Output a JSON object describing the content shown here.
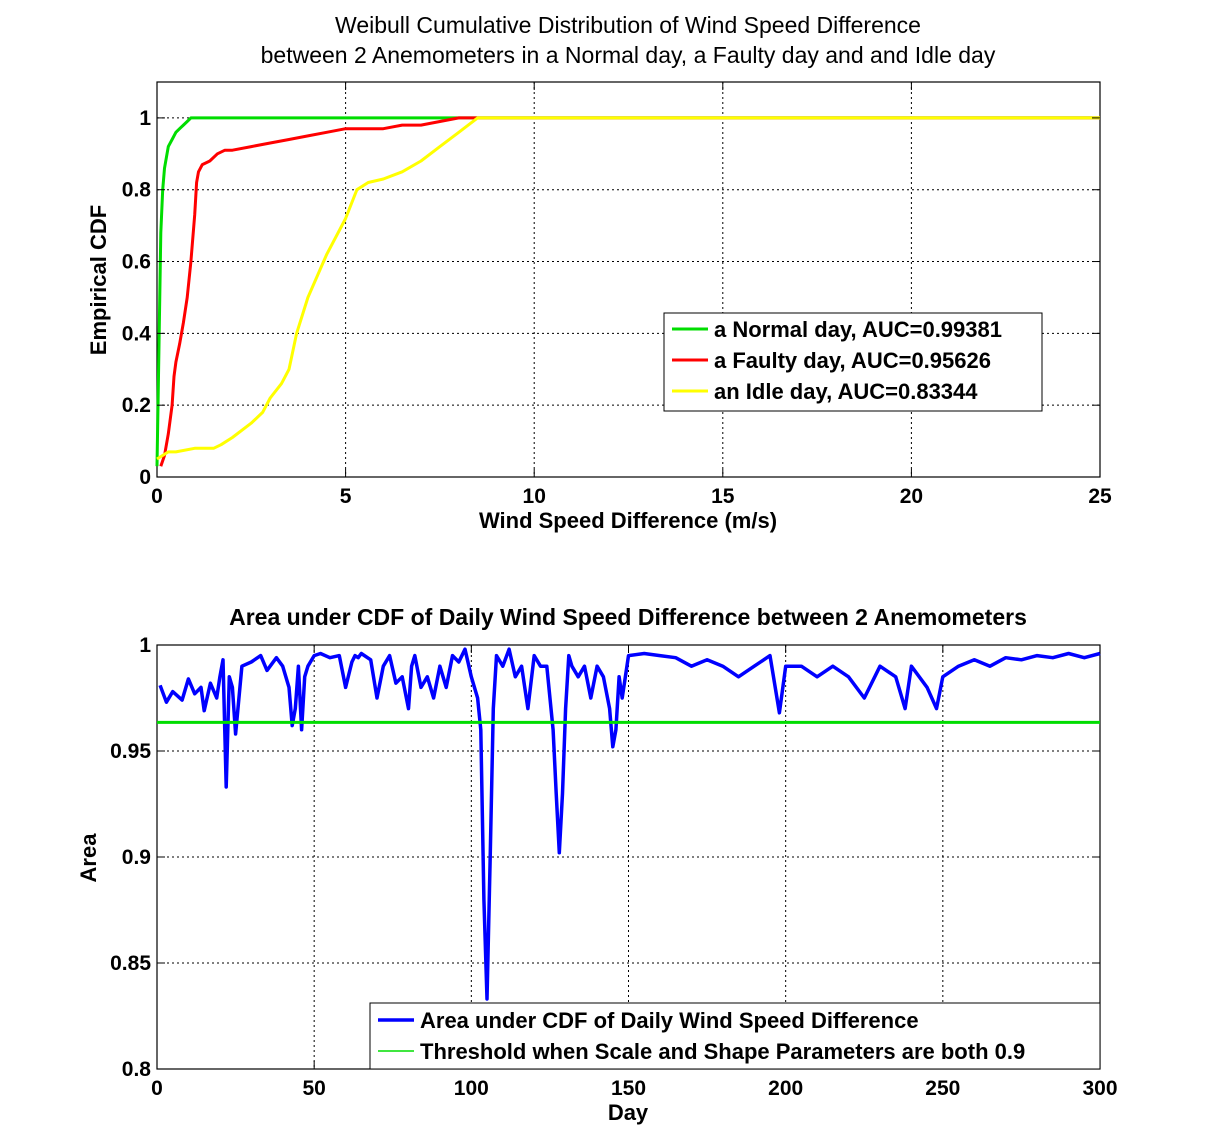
{
  "chart_data": [
    {
      "type": "line",
      "title": [
        "Weibull Cumulative Distribution of Wind Speed Difference",
        "between 2 Anemometers in a Normal day, a Faulty day and and Idle day"
      ],
      "xlabel": "Wind Speed Difference (m/s)",
      "ylabel": "Empirical CDF",
      "xlim": [
        0,
        25
      ],
      "ylim": [
        0,
        1.1
      ],
      "xticks": [
        0,
        5,
        10,
        15,
        20,
        25
      ],
      "yticks": [
        0,
        0.2,
        0.4,
        0.6,
        0.8,
        1
      ],
      "grid": true,
      "legend_position": "center-right",
      "series": [
        {
          "name": "a Normal day, AUC=0.99381",
          "color": "#00dd00",
          "x": [
            0,
            0.05,
            0.1,
            0.15,
            0.2,
            0.25,
            0.3,
            0.4,
            0.5,
            0.6,
            0.7,
            0.8,
            0.9,
            1.0,
            8.5,
            25
          ],
          "y": [
            0.03,
            0.35,
            0.68,
            0.8,
            0.86,
            0.89,
            0.92,
            0.94,
            0.96,
            0.97,
            0.98,
            0.99,
            1.0,
            1.0,
            1.0,
            1.0
          ]
        },
        {
          "name": "a Faulty day, AUC=0.95626",
          "color": "#ff0000",
          "x": [
            0.1,
            0.2,
            0.3,
            0.4,
            0.45,
            0.5,
            0.6,
            0.7,
            0.8,
            0.9,
            1.0,
            1.05,
            1.1,
            1.2,
            1.4,
            1.6,
            1.8,
            2.0,
            2.5,
            3.0,
            3.5,
            4.0,
            4.5,
            5.0,
            5.5,
            6.0,
            6.5,
            7.0,
            7.5,
            8.0,
            8.5,
            25
          ],
          "y": [
            0.03,
            0.06,
            0.12,
            0.2,
            0.28,
            0.32,
            0.37,
            0.43,
            0.5,
            0.6,
            0.73,
            0.82,
            0.85,
            0.87,
            0.88,
            0.9,
            0.91,
            0.91,
            0.92,
            0.93,
            0.94,
            0.95,
            0.96,
            0.97,
            0.97,
            0.97,
            0.98,
            0.98,
            0.99,
            1.0,
            1.0,
            1.0
          ]
        },
        {
          "name": "an Idle day, AUC=0.83344",
          "color": "#ffff00",
          "x": [
            0,
            0.3,
            0.5,
            1.0,
            1.5,
            1.7,
            2.0,
            2.5,
            2.8,
            3.0,
            3.3,
            3.5,
            3.7,
            4.0,
            4.5,
            5.0,
            5.3,
            5.6,
            6.0,
            6.5,
            7.0,
            7.5,
            8.0,
            8.5,
            25
          ],
          "y": [
            0.05,
            0.07,
            0.07,
            0.08,
            0.08,
            0.09,
            0.11,
            0.15,
            0.18,
            0.22,
            0.26,
            0.3,
            0.4,
            0.5,
            0.62,
            0.72,
            0.8,
            0.82,
            0.83,
            0.85,
            0.88,
            0.92,
            0.96,
            1.0,
            1.0
          ]
        }
      ]
    },
    {
      "type": "line",
      "title": "Area under CDF of Daily Wind Speed Difference between 2 Anemometers",
      "xlabel": "Day",
      "ylabel": "Area",
      "xlim": [
        0,
        300
      ],
      "ylim": [
        0.8,
        1.0
      ],
      "xticks": [
        0,
        50,
        100,
        150,
        200,
        250,
        300
      ],
      "yticks": [
        0.8,
        0.85,
        0.9,
        0.95,
        1
      ],
      "grid": true,
      "legend_position": "bottom-right",
      "series": [
        {
          "name": "Area under CDF of Daily Wind Speed Difference",
          "color": "#0000ff",
          "x": [
            1,
            3,
            5,
            8,
            10,
            12,
            14,
            15,
            17,
            19,
            20,
            21,
            22,
            23,
            24,
            25,
            27,
            30,
            33,
            35,
            38,
            40,
            42,
            43,
            44,
            45,
            46,
            47,
            48,
            50,
            52,
            55,
            58,
            60,
            62,
            63,
            64,
            65,
            68,
            70,
            72,
            74,
            76,
            78,
            80,
            81,
            82,
            84,
            86,
            88,
            90,
            92,
            94,
            96,
            98,
            100,
            102,
            103,
            104,
            105,
            106,
            107,
            108,
            110,
            112,
            114,
            116,
            118,
            120,
            122,
            124,
            126,
            127,
            128,
            129,
            130,
            131,
            132,
            134,
            136,
            138,
            140,
            142,
            144,
            145,
            146,
            147,
            148,
            150,
            155,
            160,
            165,
            170,
            175,
            180,
            185,
            190,
            195,
            198,
            200,
            205,
            210,
            215,
            220,
            225,
            230,
            235,
            238,
            240,
            245,
            248,
            250,
            255,
            260,
            265,
            270,
            275,
            280,
            285,
            290,
            295,
            300
          ],
          "y": [
            0.981,
            0.973,
            0.978,
            0.974,
            0.984,
            0.977,
            0.98,
            0.969,
            0.982,
            0.975,
            0.985,
            0.993,
            0.933,
            0.985,
            0.98,
            0.958,
            0.99,
            0.992,
            0.995,
            0.988,
            0.994,
            0.99,
            0.98,
            0.962,
            0.97,
            0.99,
            0.96,
            0.985,
            0.99,
            0.995,
            0.996,
            0.994,
            0.995,
            0.98,
            0.992,
            0.995,
            0.994,
            0.996,
            0.993,
            0.975,
            0.99,
            0.995,
            0.982,
            0.985,
            0.97,
            0.99,
            0.995,
            0.98,
            0.985,
            0.975,
            0.99,
            0.98,
            0.995,
            0.992,
            0.998,
            0.985,
            0.975,
            0.96,
            0.88,
            0.833,
            0.9,
            0.97,
            0.995,
            0.99,
            0.998,
            0.985,
            0.99,
            0.97,
            0.995,
            0.99,
            0.99,
            0.96,
            0.93,
            0.902,
            0.93,
            0.97,
            0.995,
            0.99,
            0.985,
            0.99,
            0.975,
            0.99,
            0.985,
            0.97,
            0.952,
            0.96,
            0.985,
            0.975,
            0.995,
            0.996,
            0.995,
            0.994,
            0.99,
            0.993,
            0.99,
            0.985,
            0.99,
            0.995,
            0.968,
            0.99,
            0.99,
            0.985,
            0.99,
            0.985,
            0.975,
            0.99,
            0.985,
            0.97,
            0.99,
            0.98,
            0.97,
            0.985,
            0.99,
            0.993,
            0.99,
            0.994,
            0.993,
            0.995,
            0.994,
            0.996,
            0.994,
            0.996
          ]
        },
        {
          "name": "Threshold when Scale and Shape Parameters are both 0.9",
          "color": "#00dd00",
          "x": [
            0,
            300
          ],
          "y": [
            0.9635,
            0.9635
          ]
        }
      ]
    }
  ],
  "tick_labels": {
    "cdf_x": [
      "0",
      "5",
      "10",
      "15",
      "20",
      "25"
    ],
    "cdf_y": [
      "0",
      "0.2",
      "0.4",
      "0.6",
      "0.8",
      "1"
    ],
    "area_x": [
      "0",
      "50",
      "100",
      "150",
      "200",
      "250",
      "300"
    ],
    "area_y": [
      "0.8",
      "0.85",
      "0.9",
      "0.95",
      "1"
    ]
  }
}
